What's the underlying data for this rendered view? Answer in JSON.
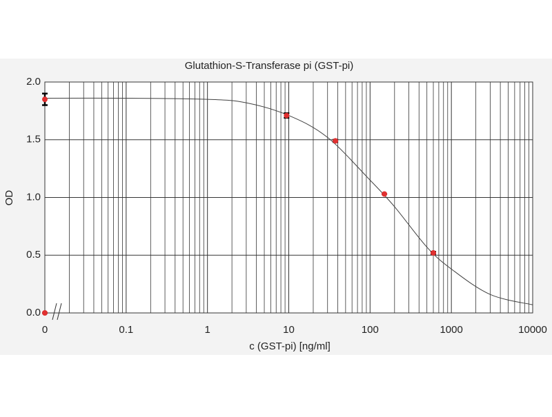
{
  "chart_data": {
    "type": "scatter",
    "title": "Glutathion-S-Transferase pi (GST-pi)",
    "x_label": "c (GST-pi) [ng/ml]",
    "y_label": "OD",
    "log_x": true,
    "grid": true,
    "xlim": [
      0.01,
      10000
    ],
    "xticks": [
      {
        "value": 0.01,
        "label": "0"
      },
      0.1,
      1,
      10,
      100,
      1000,
      10000
    ],
    "x_minor_ticks": [
      0.02,
      0.03,
      0.04,
      0.05,
      0.06,
      0.07,
      0.08,
      0.09,
      0.2,
      0.3,
      0.4,
      0.5,
      0.6,
      0.7,
      0.8,
      0.9,
      2,
      3,
      4,
      5,
      6,
      7,
      8,
      9,
      20,
      30,
      40,
      50,
      60,
      70,
      80,
      90,
      200,
      300,
      400,
      500,
      600,
      700,
      800,
      900,
      2000,
      3000,
      4000,
      5000,
      6000,
      7000,
      8000,
      9000
    ],
    "ylim": [
      0,
      2
    ],
    "yticks": [
      {
        "value": 0,
        "label": "0.0"
      },
      0.5,
      {
        "value": 1,
        "label": "1.0"
      },
      1.5,
      {
        "value": 2,
        "label": "2.0"
      }
    ],
    "points": {
      "color": "#e03030",
      "error_color": "#000000",
      "x": [
        0.01,
        9.4,
        37.5,
        150,
        600,
        0.01
      ],
      "y": [
        1.85,
        1.71,
        1.49,
        1.03,
        0.52,
        0.0
      ],
      "errors": [
        0.05,
        0.02,
        0.01,
        0.0,
        0.01,
        0.0
      ]
    },
    "fit": {
      "color": "#404040",
      "x": [
        0.01,
        0.1,
        1,
        3,
        10,
        30,
        100,
        200,
        500,
        1000,
        3000,
        10000
      ],
      "y": [
        1.86,
        1.86,
        1.85,
        1.82,
        1.71,
        1.52,
        1.15,
        0.92,
        0.57,
        0.38,
        0.16,
        0.07
      ]
    }
  }
}
